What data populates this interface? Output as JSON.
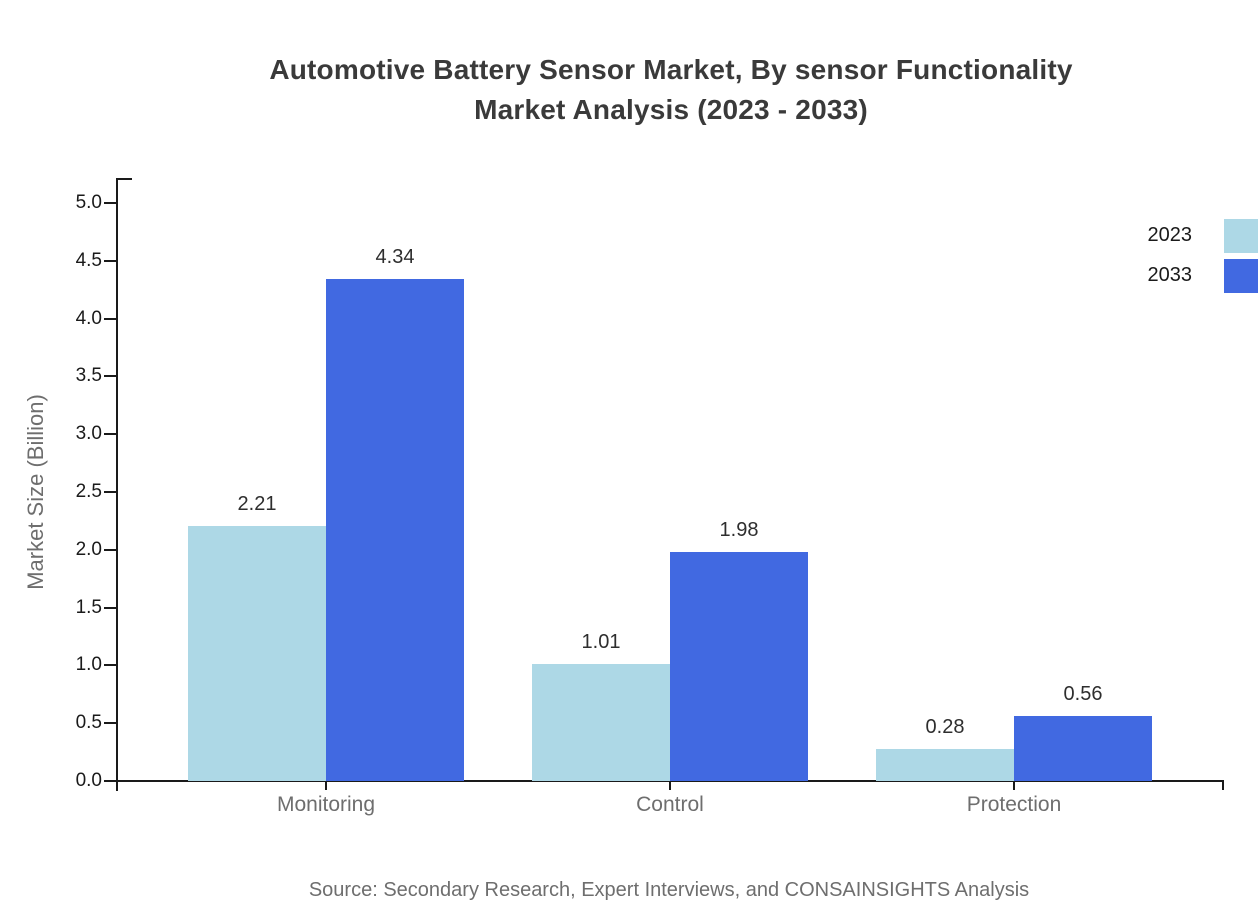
{
  "title": {
    "line1": "Automotive Battery Sensor Market, By sensor Functionality",
    "line2": "Market Analysis (2023 - 2033)"
  },
  "y_axis": {
    "label": "Market Size (Billion)"
  },
  "legend": {
    "items": [
      {
        "label": "2023",
        "color": "#add8e6"
      },
      {
        "label": "2033",
        "color": "#4169e1"
      }
    ]
  },
  "footer": {
    "source": "Source: Secondary Research, Expert Interviews, and CONSAINSIGHTS Analysis"
  },
  "chart_data": {
    "type": "bar",
    "title": "Automotive Battery Sensor Market, By sensor Functionality Market Analysis (2023 - 2033)",
    "categories": [
      "Monitoring",
      "Control",
      "Protection"
    ],
    "series": [
      {
        "name": "2023",
        "color": "#add8e6",
        "values": [
          2.21,
          1.01,
          0.28
        ]
      },
      {
        "name": "2033",
        "color": "#4169e1",
        "values": [
          4.34,
          1.98,
          0.56
        ]
      }
    ],
    "xlabel": "",
    "ylabel": "Market Size (Billion)",
    "ylim": [
      0,
      5
    ],
    "yticks": [
      "0.0",
      "0.5",
      "1.0",
      "1.5",
      "2.0",
      "2.5",
      "3.0",
      "3.5",
      "4.0",
      "4.5",
      "5.0"
    ],
    "grid": false,
    "legend_position": "upper-right",
    "bar_value_labels": true,
    "source": "Source: Secondary Research, Expert Interviews, and CONSAINSIGHTS Analysis"
  }
}
